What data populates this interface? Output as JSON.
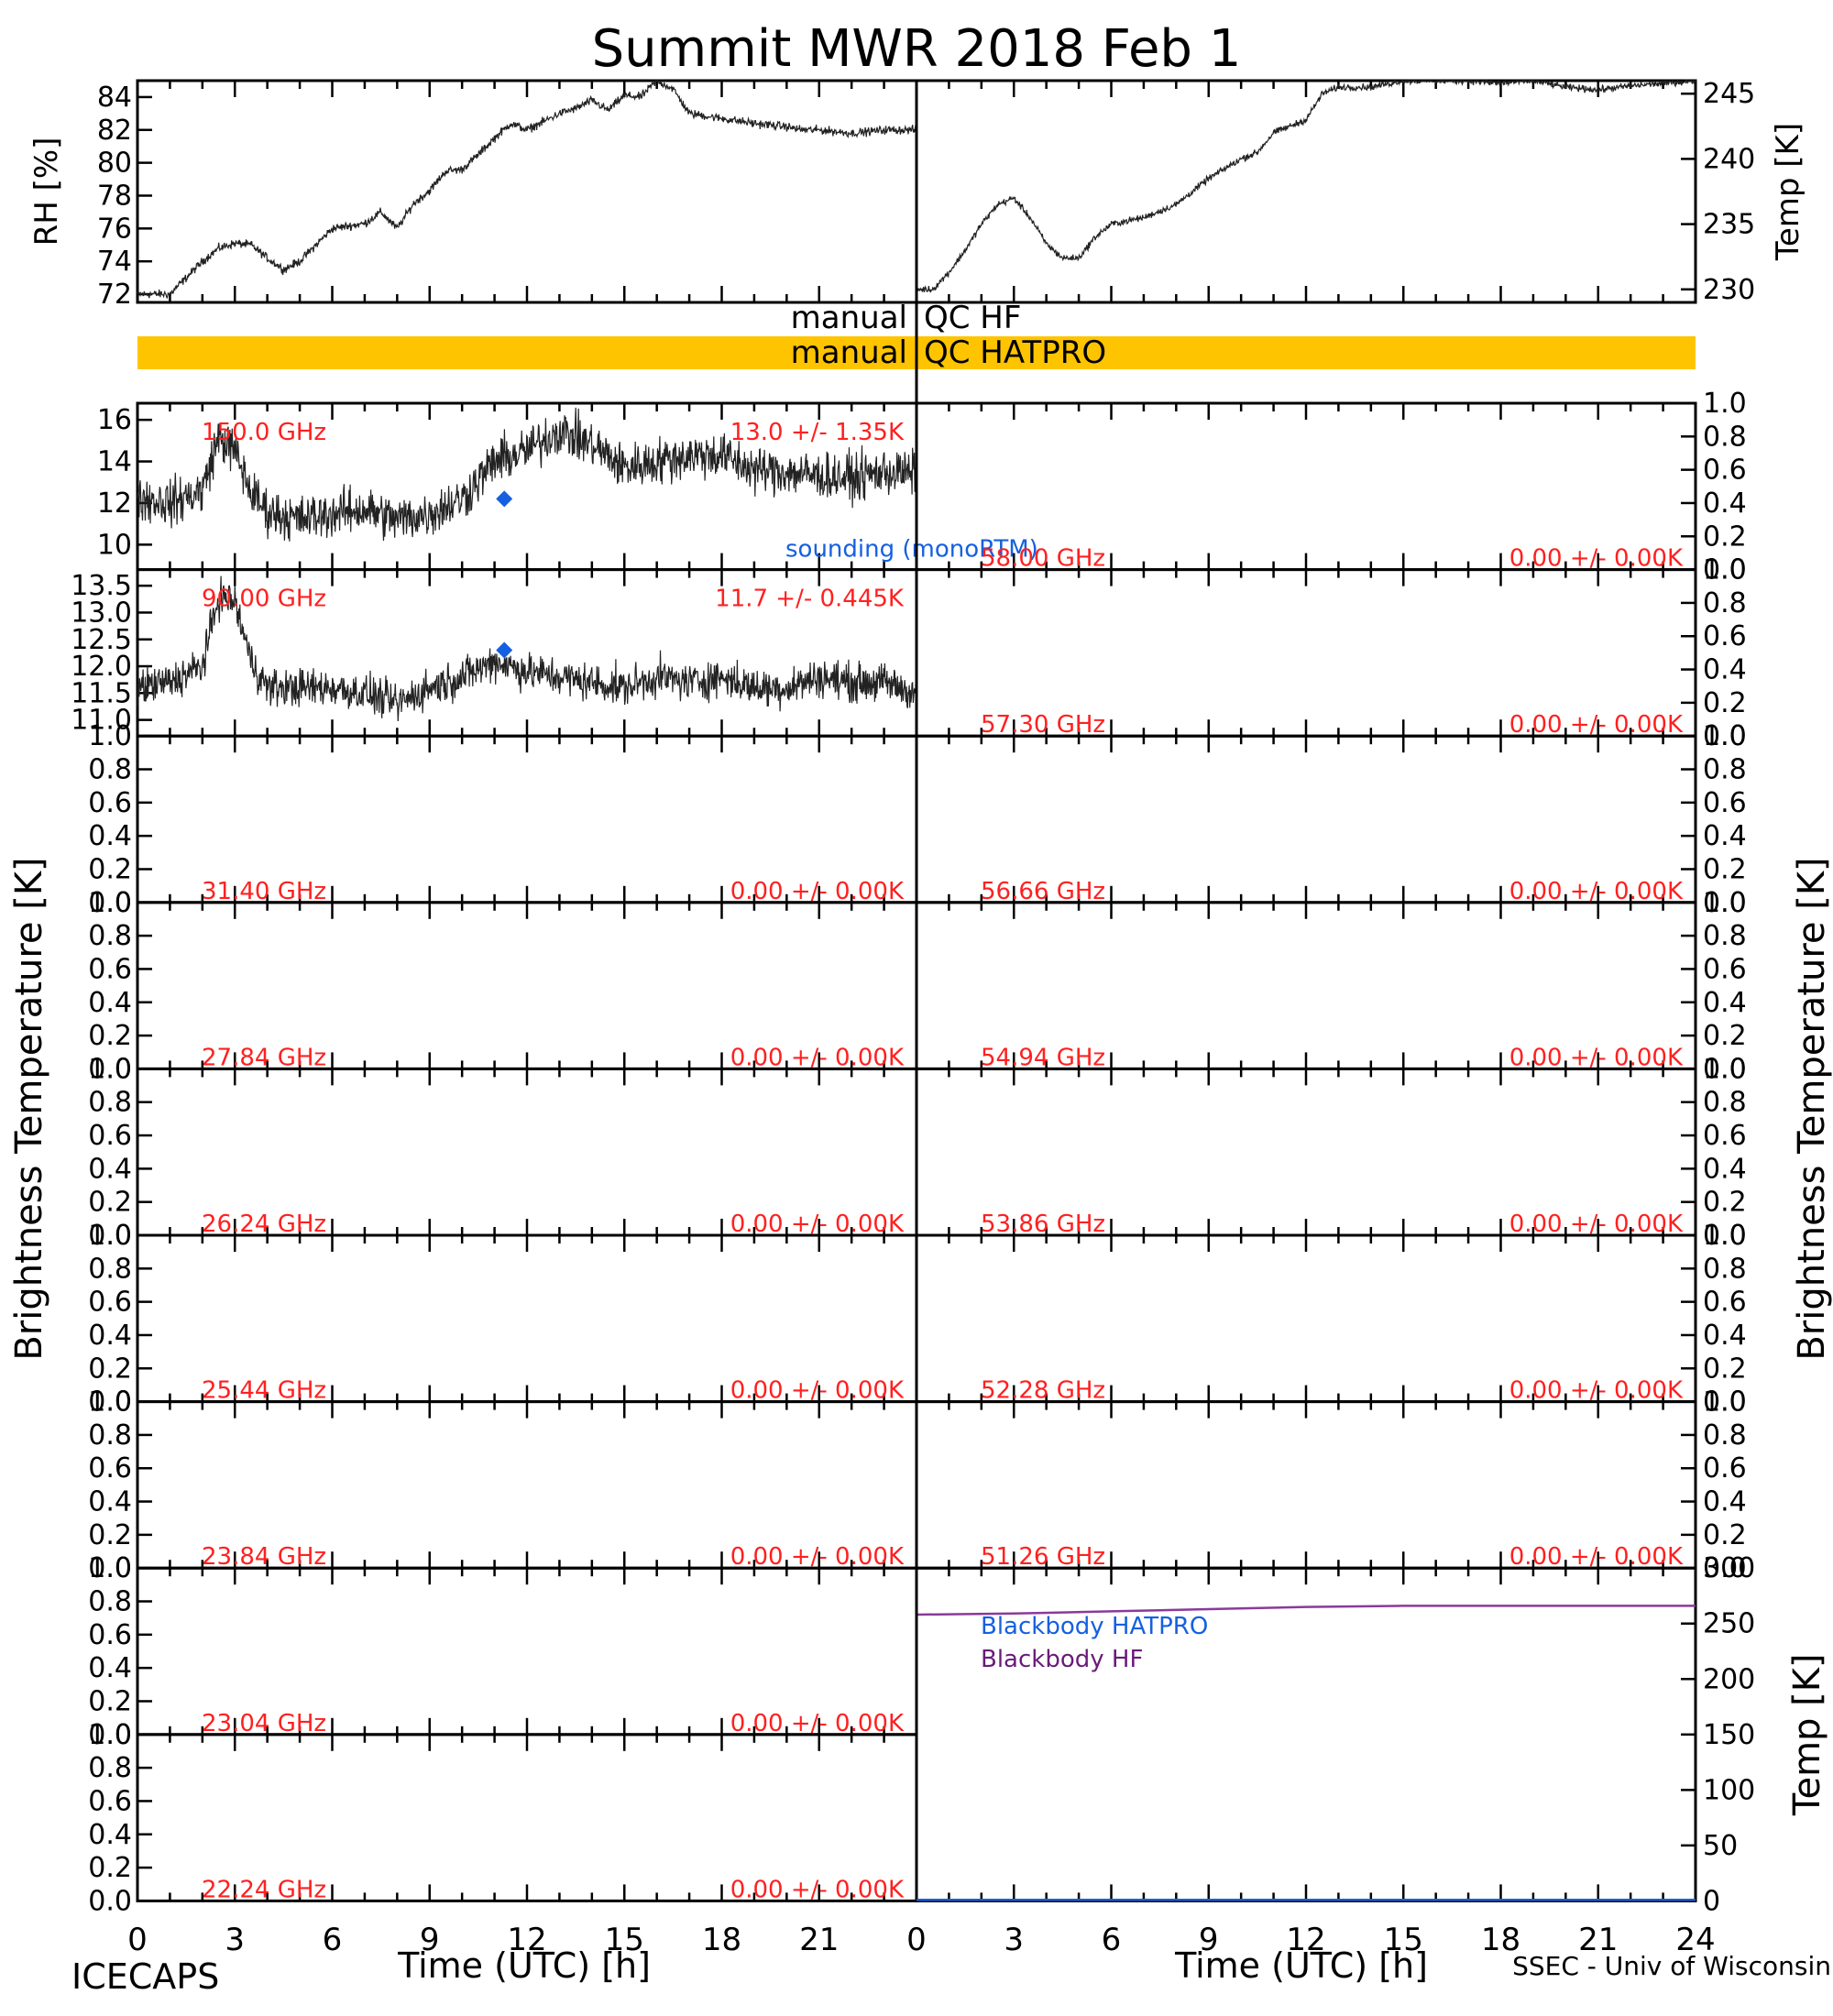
{
  "title": "Summit MWR 2018 Feb  1",
  "footer_left": "ICECAPS",
  "footer_right": "SSEC - Univ of Wisconsin",
  "xlabel": "Time (UTC) [h]",
  "x_ticks": [
    "0",
    "3",
    "6",
    "9",
    "12",
    "15",
    "18",
    "21",
    "0",
    "3",
    "6",
    "9",
    "12",
    "15",
    "18",
    "21",
    "24"
  ],
  "qc": {
    "hf_left": "manual",
    "hf_right": "QC HF",
    "hatpro_left": "manual",
    "hatpro_right": "QC HATPRO",
    "hatpro_color": "#ffc400"
  },
  "colors": {
    "labels": "#ff2020",
    "sounding": "#1560e0",
    "bb_hf": "#8a3a9a",
    "bb_hatpro": "#1560e0"
  },
  "chart_data": [
    {
      "type": "line",
      "panel": "rh",
      "ylabel": "RH [%]",
      "ylim": [
        71.5,
        85
      ],
      "xlim": [
        0,
        24
      ],
      "yticks": [
        "72",
        "74",
        "76",
        "78",
        "80",
        "82",
        "84"
      ],
      "x": [
        0,
        1,
        2,
        2.5,
        3,
        3.5,
        4,
        4.5,
        5,
        5.5,
        6,
        7,
        7.5,
        8,
        8.5,
        9,
        9.5,
        10,
        10.5,
        11,
        11.5,
        12,
        12.5,
        13,
        13.5,
        14,
        14.5,
        15,
        15.5,
        16,
        16.5,
        17,
        18,
        19,
        20,
        20.5,
        21,
        22,
        23,
        24
      ],
      "values": [
        72,
        72,
        74,
        74.8,
        75.1,
        75,
        74.2,
        73.5,
        74,
        75,
        76,
        76.3,
        77,
        76,
        77.5,
        78.3,
        79.5,
        79.6,
        80.5,
        81.5,
        82.4,
        82,
        82.5,
        83,
        83.3,
        83.8,
        83.2,
        84.1,
        84,
        85,
        84.5,
        83,
        82.7,
        82.4,
        82.2,
        82,
        82,
        81.8,
        82,
        82
      ]
    },
    {
      "type": "line",
      "panel": "temp",
      "ylabel": "Temp [K]",
      "ylim": [
        229,
        246
      ],
      "xlim": [
        0,
        24
      ],
      "yticks": [
        "230",
        "235",
        "240",
        "245"
      ],
      "x": [
        0,
        0.5,
        1,
        1.5,
        2,
        2.5,
        3,
        3.5,
        4,
        4.5,
        5,
        5.5,
        6,
        7,
        7.5,
        8,
        9,
        10,
        10.5,
        11,
        11.5,
        12,
        12.5,
        13,
        14,
        15,
        16,
        17,
        18,
        19,
        20,
        21,
        22,
        23,
        24
      ],
      "values": [
        230,
        230,
        231.3,
        233,
        235,
        236.5,
        237,
        235.5,
        233.5,
        232.4,
        232.4,
        234,
        235,
        235.5,
        236,
        236.5,
        238.5,
        240,
        240.5,
        242,
        242.5,
        243,
        245,
        245.5,
        245.5,
        246,
        246,
        246,
        245.8,
        246,
        245.5,
        245.3,
        245.6,
        245.8,
        246
      ]
    },
    {
      "type": "line",
      "panel": "tb-150",
      "ylim": [
        8.8,
        16.8
      ],
      "xlim": [
        0,
        24
      ],
      "yticks": [
        "10",
        "12",
        "14",
        "16"
      ],
      "label_left": "150.0 GHz",
      "label_right": "13.0 +/-  1.35K",
      "x": [
        0,
        1,
        2,
        2.5,
        3,
        3.5,
        4,
        5,
        6,
        7,
        8,
        9,
        10,
        11,
        12,
        13,
        14,
        15,
        16,
        17,
        18,
        19,
        20,
        21,
        22,
        23,
        24
      ],
      "values": [
        12.3,
        12,
        12.6,
        15.2,
        14.5,
        12.5,
        11.6,
        11.2,
        11.5,
        11.7,
        11.2,
        11.5,
        12.2,
        14,
        14.5,
        15.5,
        14.8,
        13.7,
        14,
        14.3,
        14.3,
        13.6,
        13.5,
        13.3,
        13.2,
        13.5,
        13.4
      ],
      "sounding": {
        "x": 11.3,
        "y": 12.2,
        "label": "sounding (monoRTM)"
      }
    },
    {
      "type": "line",
      "panel": "tb-90",
      "ylim": [
        10.7,
        13.8
      ],
      "xlim": [
        0,
        24
      ],
      "yticks": [
        "11.0",
        "11.5",
        "12.0",
        "12.5",
        "13.0",
        "13.5"
      ],
      "label_left": "90.00 GHz",
      "label_right": "11.7 +/-  0.445K",
      "x": [
        0,
        1,
        2,
        2.5,
        3,
        3.5,
        4,
        5,
        6,
        7,
        8,
        9,
        10,
        11,
        12,
        13,
        14,
        15,
        16,
        17,
        18,
        19,
        20,
        21,
        22,
        23,
        24
      ],
      "values": [
        11.6,
        11.7,
        12,
        13.3,
        13.2,
        12.1,
        11.6,
        11.6,
        11.6,
        11.5,
        11.3,
        11.6,
        11.8,
        12.1,
        11.9,
        11.8,
        11.7,
        11.6,
        11.8,
        11.7,
        11.8,
        11.6,
        11.6,
        11.8,
        11.7,
        11.7,
        11.5
      ],
      "sounding": {
        "x": 11.3,
        "y": 12.3
      }
    },
    {
      "type": "line",
      "panel": "tb-31.40",
      "label_left": "31.40 GHz",
      "label_right": "0.00 +/-  0.00K",
      "ylim": [
        0,
        1
      ],
      "yticks": [
        "0.0",
        "0.2",
        "0.4",
        "0.6",
        "0.8",
        "1.0"
      ]
    },
    {
      "type": "line",
      "panel": "tb-27.84",
      "label_left": "27.84 GHz",
      "label_right": "0.00 +/-  0.00K",
      "ylim": [
        0,
        1
      ],
      "yticks": [
        "0.0",
        "0.2",
        "0.4",
        "0.6",
        "0.8",
        "1.0"
      ]
    },
    {
      "type": "line",
      "panel": "tb-26.24",
      "label_left": "26.24 GHz",
      "label_right": "0.00 +/-  0.00K",
      "ylim": [
        0,
        1
      ],
      "yticks": [
        "0.0",
        "0.2",
        "0.4",
        "0.6",
        "0.8",
        "1.0"
      ]
    },
    {
      "type": "line",
      "panel": "tb-25.44",
      "label_left": "25.44 GHz",
      "label_right": "0.00 +/-  0.00K",
      "ylim": [
        0,
        1
      ],
      "yticks": [
        "0.0",
        "0.2",
        "0.4",
        "0.6",
        "0.8",
        "1.0"
      ]
    },
    {
      "type": "line",
      "panel": "tb-23.84",
      "label_left": "23.84 GHz",
      "label_right": "0.00 +/-  0.00K",
      "ylim": [
        0,
        1
      ],
      "yticks": [
        "0.0",
        "0.2",
        "0.4",
        "0.6",
        "0.8",
        "1.0"
      ]
    },
    {
      "type": "line",
      "panel": "tb-23.04",
      "label_left": "23.04 GHz",
      "label_right": "0.00 +/-  0.00K",
      "ylim": [
        0,
        1
      ],
      "yticks": [
        "0.0",
        "0.2",
        "0.4",
        "0.6",
        "0.8",
        "1.0"
      ]
    },
    {
      "type": "line",
      "panel": "tb-22.24",
      "label_left": "22.24 GHz",
      "label_right": "0.00 +/-  0.00K",
      "ylim": [
        0,
        1
      ],
      "yticks": [
        "0.0",
        "0.2",
        "0.4",
        "0.6",
        "0.8",
        "1.0"
      ]
    },
    {
      "type": "line",
      "panel": "tb-58.00",
      "label_left": "58.00 GHz",
      "label_right": "0.00 +/-  0.00K",
      "ylim": [
        0,
        1
      ],
      "yticks": [
        "0.0",
        "0.2",
        "0.4",
        "0.6",
        "0.8",
        "1.0"
      ]
    },
    {
      "type": "line",
      "panel": "tb-57.30",
      "label_left": "57.30 GHz",
      "label_right": "0.00 +/-  0.00K",
      "ylim": [
        0,
        1
      ],
      "yticks": [
        "0.0",
        "0.2",
        "0.4",
        "0.6",
        "0.8",
        "1.0"
      ]
    },
    {
      "type": "line",
      "panel": "tb-56.66",
      "label_left": "56.66 GHz",
      "label_right": "0.00 +/-  0.00K",
      "ylim": [
        0,
        1
      ],
      "yticks": [
        "0.0",
        "0.2",
        "0.4",
        "0.6",
        "0.8",
        "1.0"
      ]
    },
    {
      "type": "line",
      "panel": "tb-54.94",
      "label_left": "54.94 GHz",
      "label_right": "0.00 +/-  0.00K",
      "ylim": [
        0,
        1
      ],
      "yticks": [
        "0.0",
        "0.2",
        "0.4",
        "0.6",
        "0.8",
        "1.0"
      ]
    },
    {
      "type": "line",
      "panel": "tb-53.86",
      "label_left": "53.86 GHz",
      "label_right": "0.00 +/-  0.00K",
      "ylim": [
        0,
        1
      ],
      "yticks": [
        "0.0",
        "0.2",
        "0.4",
        "0.6",
        "0.8",
        "1.0"
      ]
    },
    {
      "type": "line",
      "panel": "tb-52.28",
      "label_left": "52.28 GHz",
      "label_right": "0.00 +/-  0.00K",
      "ylim": [
        0,
        1
      ],
      "yticks": [
        "0.0",
        "0.2",
        "0.4",
        "0.6",
        "0.8",
        "1.0"
      ]
    },
    {
      "type": "line",
      "panel": "tb-51.26",
      "label_left": "51.26 GHz",
      "label_right": "0.00 +/-  0.00K",
      "ylim": [
        0,
        1
      ],
      "yticks": [
        "0.0",
        "0.2",
        "0.4",
        "0.6",
        "0.8",
        "1.0"
      ]
    },
    {
      "type": "line",
      "panel": "blackbody",
      "ylabel": "Temp [K]",
      "ylim": [
        0,
        300
      ],
      "xlim": [
        0,
        24
      ],
      "yticks": [
        "0",
        "50",
        "100",
        "150",
        "200",
        "250",
        "300"
      ],
      "series": [
        {
          "name": "Blackbody HATPRO",
          "x": [
            0,
            24
          ],
          "values": [
            1,
            1
          ]
        },
        {
          "name": "Blackbody HF",
          "x": [
            0,
            3,
            6,
            9,
            12,
            15,
            18,
            21,
            24
          ],
          "values": [
            258,
            259,
            261,
            263,
            265,
            266,
            266,
            266,
            266
          ]
        }
      ]
    }
  ],
  "ylabel_tb": "Brightness Temperature [K]"
}
